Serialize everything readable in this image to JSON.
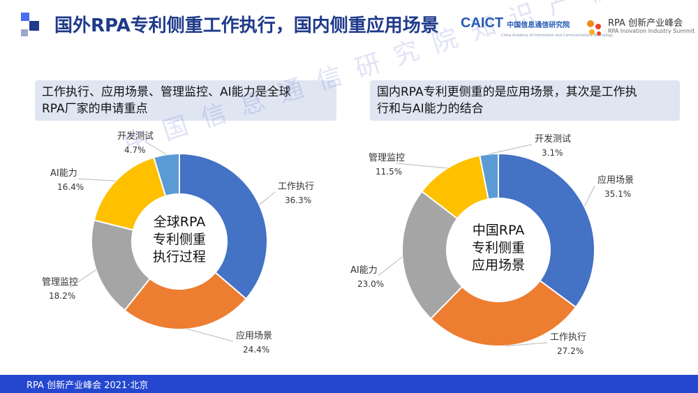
{
  "header": {
    "title": "国外RPA专利侧重工作执行，国内侧重应用场景",
    "logo_caict": "CAICT",
    "logo_caict_cn": "中国信息通信研究院",
    "logo_caict_en": "China Academy of Information and Communications Technology",
    "logo_rpa_title": "RPA 创新产业峰会",
    "logo_rpa_sub": "RPA Inovation Industry Summit",
    "accent_color": "#2547d0"
  },
  "left_box": {
    "line1": "工作执行、应用场景、管理监控、AI能力是全球",
    "line2": "RPA厂家的申请重点"
  },
  "right_box": {
    "line1": "国内RPA专利更侧重的是应用场景，其次是工作执",
    "line2": "行和与AI能力的结合"
  },
  "watermark": "中国信息通信研究院知识产权中心",
  "footer": {
    "text": "RPA 创新产业峰会 2021·北京"
  },
  "chart_data": [
    {
      "type": "pie",
      "style": "donut",
      "center_label": [
        "全球RPA",
        "专利侧重",
        "执行过程"
      ],
      "slices": [
        {
          "label": "工作执行",
          "value": 36.3,
          "pct_text": "36.3%",
          "color": "#4472c4"
        },
        {
          "label": "应用场景",
          "value": 24.4,
          "pct_text": "24.4%",
          "color": "#ed7d31"
        },
        {
          "label": "管理监控",
          "value": 18.2,
          "pct_text": "18.2%",
          "color": "#a5a5a5"
        },
        {
          "label": "AI能力",
          "value": 16.4,
          "pct_text": "16.4%",
          "color": "#ffc000"
        },
        {
          "label": "开发测试",
          "value": 4.7,
          "pct_text": "4.7%",
          "color": "#5b9bd5"
        }
      ]
    },
    {
      "type": "pie",
      "style": "donut",
      "center_label": [
        "中国RPA",
        "专利侧重",
        "应用场景"
      ],
      "slices": [
        {
          "label": "应用场景",
          "value": 35.1,
          "pct_text": "35.1%",
          "color": "#4472c4"
        },
        {
          "label": "工作执行",
          "value": 27.2,
          "pct_text": "27.2%",
          "color": "#ed7d31"
        },
        {
          "label": "AI能力",
          "value": 23.0,
          "pct_text": "23.0%",
          "color": "#a5a5a5"
        },
        {
          "label": "管理监控",
          "value": 11.5,
          "pct_text": "11.5%",
          "color": "#ffc000"
        },
        {
          "label": "开发测试",
          "value": 3.1,
          "pct_text": "3.1%",
          "color": "#5b9bd5"
        }
      ]
    }
  ]
}
